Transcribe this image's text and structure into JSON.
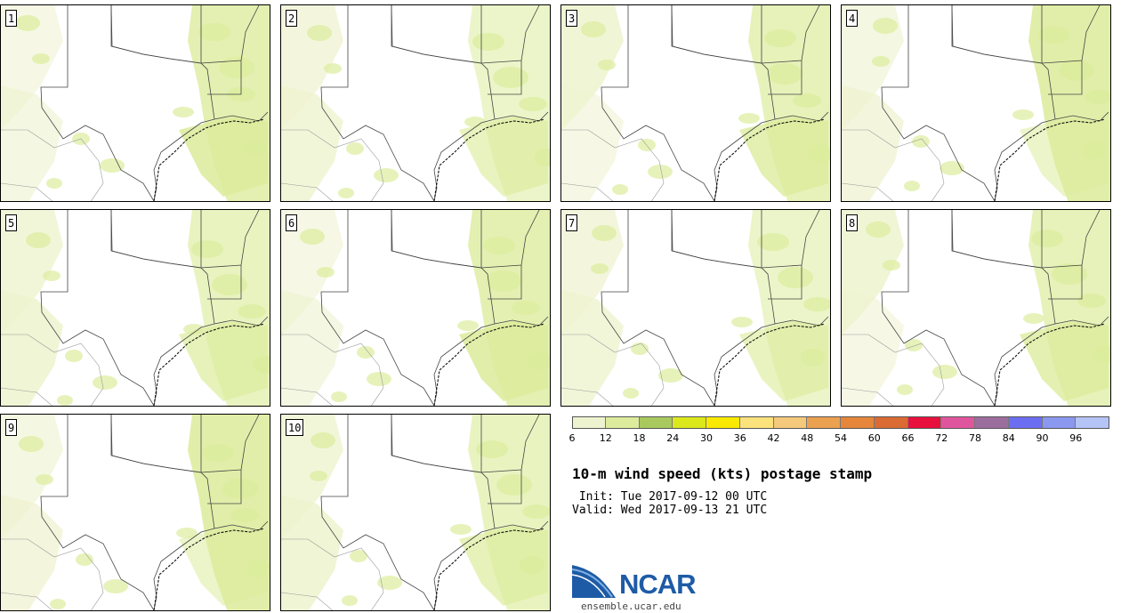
{
  "product": {
    "title": "10-m wind speed (kts) postage stamp",
    "init": " Init: Tue 2017-09-12 00 UTC",
    "valid": "Valid: Wed 2017-09-13 21 UTC"
  },
  "members": [
    "1",
    "2",
    "3",
    "4",
    "5",
    "6",
    "7",
    "8",
    "9",
    "10"
  ],
  "colorbar": {
    "ticks": [
      "6",
      "12",
      "18",
      "24",
      "30",
      "36",
      "42",
      "48",
      "54",
      "60",
      "66",
      "72",
      "78",
      "84",
      "90",
      "96"
    ],
    "colors": [
      "#eef3cf",
      "#dcec9c",
      "#a9c95f",
      "#dbe81c",
      "#fae900",
      "#fbe27b",
      "#f5c97c",
      "#eba14f",
      "#e5863a",
      "#d96b33",
      "#e8103c",
      "#e0569e",
      "#9c6e9e",
      "#6c6ef2",
      "#8a98f0",
      "#b4c4f6"
    ]
  },
  "logo": {
    "name": "NCAR",
    "url": "ensemble.ucar.edu"
  }
}
